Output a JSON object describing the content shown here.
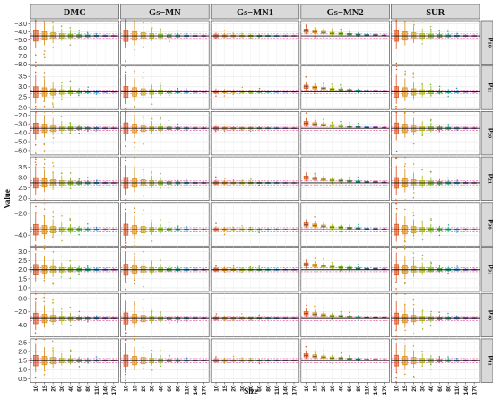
{
  "chart_data": {
    "type": "boxplot",
    "xlabel": "Size",
    "ylabel": "Value",
    "panel_columns": [
      "DMC",
      "Gs−MN",
      "Gs−MN1",
      "Gs−MN2",
      "SUR"
    ],
    "panel_rows": [
      {
        "label_base": "β",
        "label_sub": "10",
        "true_value": -4.5,
        "yticks": [
          "−3.0",
          "−4.0",
          "−5.0",
          "−6.0",
          "−7.0",
          "−8.0"
        ],
        "ylim": [
          -8.0,
          -2.6
        ]
      },
      {
        "label_base": "β",
        "label_sub": "11",
        "true_value": 2.75,
        "yticks": [
          "3.5",
          "3.0",
          "2.5",
          "2.0"
        ],
        "ylim": [
          1.9,
          4.0
        ]
      },
      {
        "label_base": "β",
        "label_sub": "20",
        "true_value": -3.5,
        "yticks": [
          "−2.0",
          "−3.0",
          "−4.0",
          "−5.0",
          "−6.0"
        ],
        "ylim": [
          -6.5,
          -1.6
        ]
      },
      {
        "label_base": "β",
        "label_sub": "21",
        "true_value": 2.75,
        "yticks": [
          "3.5",
          "3.0",
          "2.5",
          "2.0"
        ],
        "ylim": [
          1.9,
          4.0
        ]
      },
      {
        "label_base": "β",
        "label_sub": "30",
        "true_value": -3.5,
        "yticks": [
          "−2.0",
          "−4.0"
        ],
        "ylim": [
          -5.0,
          -1.0
        ]
      },
      {
        "label_base": "β",
        "label_sub": "31",
        "true_value": 2.0,
        "yticks": [
          "3.0",
          "2.5",
          "2.0",
          "1.5",
          "1.0"
        ],
        "ylim": [
          0.8,
          3.2
        ]
      },
      {
        "label_base": "β",
        "label_sub": "40",
        "true_value": -3.0,
        "yticks": [
          "0.0",
          "−2.0",
          "−4.0"
        ],
        "ylim": [
          -5.8,
          0.8
        ]
      },
      {
        "label_base": "β",
        "label_sub": "41",
        "true_value": 1.5,
        "yticks": [
          "2.5",
          "2.0",
          "1.5",
          "1.0",
          "0.5"
        ],
        "ylim": [
          0.3,
          2.7
        ]
      }
    ],
    "x": [
      "10",
      "15",
      "20",
      "30",
      "40",
      "60",
      "80",
      "110",
      "140",
      "170"
    ],
    "series": [
      {
        "name": "DMC",
        "spread": [
          0.78,
          0.62,
          0.48,
          0.34,
          0.26,
          0.18,
          0.14,
          0.1,
          0.08,
          0.07
        ]
      },
      {
        "name": "Gs−MN",
        "spread": [
          0.82,
          0.64,
          0.48,
          0.34,
          0.26,
          0.18,
          0.14,
          0.1,
          0.08,
          0.07
        ]
      },
      {
        "name": "Gs−MN1",
        "spread": [
          0.16,
          0.14,
          0.12,
          0.11,
          0.1,
          0.09,
          0.08,
          0.07,
          0.06,
          0.06
        ]
      },
      {
        "name": "Gs−MN2",
        "spread": [
          0.24,
          0.2,
          0.17,
          0.15,
          0.13,
          0.11,
          0.1,
          0.08,
          0.07,
          0.06
        ],
        "bias": [
          0.12,
          0.1,
          0.08,
          0.06,
          0.05,
          0.04,
          0.03,
          0.02,
          0.02,
          0.01
        ]
      },
      {
        "name": "SUR",
        "spread": [
          0.8,
          0.63,
          0.48,
          0.34,
          0.26,
          0.18,
          0.14,
          0.1,
          0.08,
          0.07
        ]
      }
    ],
    "box_colors": [
      "#d9541e",
      "#d98a14",
      "#c6a210",
      "#a9b814",
      "#7cae1c",
      "#3ea832",
      "#22a88a",
      "#2a8fd0",
      "#7a62d8",
      "#c84fc0"
    ],
    "grid": true,
    "strip_background": "#d9d9d9",
    "reference_line_color": "#111111",
    "mean_line_color": "#e0408a"
  }
}
